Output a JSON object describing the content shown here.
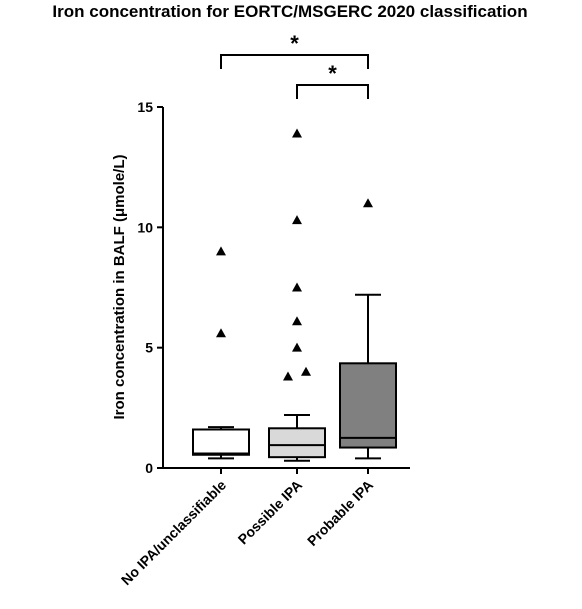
{
  "chart_data": {
    "type": "box",
    "title": "Iron concentration for EORTC/MSGERC 2020 classification",
    "ylabel": "Iron concentration in  BALF (μmole/L)",
    "xlabel": "",
    "ylim": [
      0,
      15
    ],
    "yticks": [
      0,
      5,
      10,
      15
    ],
    "ytick_labels": [
      "0",
      "5",
      "10",
      "15"
    ],
    "grid": false,
    "categories": [
      "No IPA/unclassifiable",
      "Possible IPA",
      "Probable IPA"
    ],
    "boxes": [
      {
        "category": "No IPA/unclassifiable",
        "whisker_low": 0.4,
        "q1": 0.55,
        "median": 0.6,
        "q3": 1.6,
        "whisker_high": 1.7,
        "outliers": [
          5.6,
          9.0
        ],
        "fill": "#ffffff"
      },
      {
        "category": "Possible IPA",
        "whisker_low": 0.3,
        "q1": 0.45,
        "median": 0.95,
        "q3": 1.65,
        "whisker_high": 2.2,
        "outliers": [
          3.8,
          4.0,
          5.0,
          6.1,
          7.5,
          10.3,
          13.9
        ],
        "fill": "#d9d9d9"
      },
      {
        "category": "Probable IPA",
        "whisker_low": 0.4,
        "q1": 0.85,
        "median": 1.25,
        "q3": 4.35,
        "whisker_high": 7.2,
        "outliers": [
          11.0
        ],
        "fill": "#808080"
      }
    ],
    "significance": [
      {
        "from": "No IPA/unclassifiable",
        "to": "Probable IPA",
        "label": "*"
      },
      {
        "from": "Possible IPA",
        "to": "Probable IPA",
        "label": "*"
      }
    ]
  }
}
